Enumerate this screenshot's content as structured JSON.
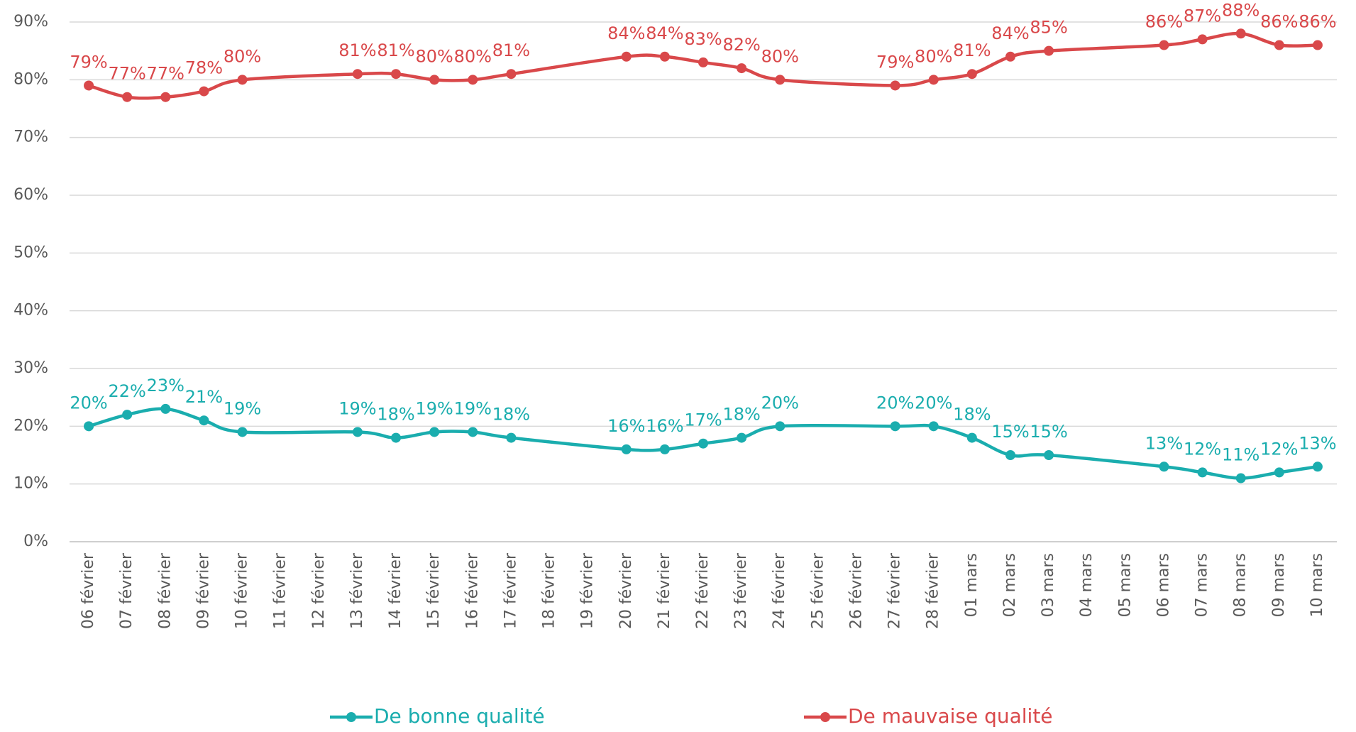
{
  "chart_data": {
    "type": "line",
    "categories": [
      "06 février",
      "07 février",
      "08 février",
      "09 février",
      "10 février",
      "11 février",
      "12 février",
      "13 février",
      "14 février",
      "15 février",
      "16 février",
      "17 février",
      "18 février",
      "19 février",
      "20 février",
      "21 février",
      "22 février",
      "23 février",
      "24 février",
      "25 février",
      "26 février",
      "27 février",
      "28 février",
      "01 mars",
      "02 mars",
      "03 mars",
      "04 mars",
      "05 mars",
      "06 mars",
      "07 mars",
      "08 mars",
      "09 mars",
      "10 mars"
    ],
    "series": [
      {
        "name": "De bonne qualité",
        "color": "#1aadae",
        "values": [
          20,
          22,
          23,
          21,
          19,
          null,
          null,
          19,
          18,
          19,
          19,
          18,
          null,
          null,
          16,
          16,
          17,
          18,
          20,
          null,
          null,
          20,
          20,
          18,
          15,
          15,
          null,
          null,
          13,
          12,
          11,
          12,
          13
        ],
        "value_labels": [
          "20%",
          "22%",
          "23%",
          "21%",
          "19%",
          null,
          null,
          "19%",
          "18%",
          "19%",
          "19%",
          "18%",
          null,
          null,
          "16%",
          "16%",
          "17%",
          "18%",
          "20%",
          null,
          null,
          "20%",
          "20%",
          "18%",
          "15%",
          "15%",
          null,
          null,
          "13%",
          "12%",
          "11%",
          "12%",
          "13%"
        ]
      },
      {
        "name": "De mauvaise qualité",
        "color": "#d9484a",
        "values": [
          79,
          77,
          77,
          78,
          80,
          null,
          null,
          81,
          81,
          80,
          80,
          81,
          null,
          null,
          84,
          84,
          83,
          82,
          80,
          null,
          null,
          79,
          80,
          81,
          84,
          85,
          null,
          null,
          86,
          87,
          88,
          86,
          86
        ],
        "value_labels": [
          "79%",
          "77%",
          "77%",
          "78%",
          "80%",
          null,
          null,
          "81%",
          "81%",
          "80%",
          "80%",
          "81%",
          null,
          null,
          "84%",
          "84%",
          "83%",
          "82%",
          "80%",
          null,
          null,
          "79%",
          "80%",
          "81%",
          "84%",
          "85%",
          null,
          null,
          "86%",
          "87%",
          "88%",
          "86%",
          "86%"
        ]
      }
    ],
    "ylim": [
      0,
      90
    ],
    "yticks": [
      {
        "value": 0,
        "label": "0%"
      },
      {
        "value": 10,
        "label": "10%"
      },
      {
        "value": 20,
        "label": "20%"
      },
      {
        "value": 30,
        "label": "30%"
      },
      {
        "value": 40,
        "label": "40%"
      },
      {
        "value": 50,
        "label": "50%"
      },
      {
        "value": 60,
        "label": "60%"
      },
      {
        "value": 70,
        "label": "70%"
      },
      {
        "value": 80,
        "label": "80%"
      },
      {
        "value": 90,
        "label": "90%"
      }
    ],
    "grid": true,
    "connect_gaps": true,
    "smooth": true,
    "legend": "bottom"
  }
}
